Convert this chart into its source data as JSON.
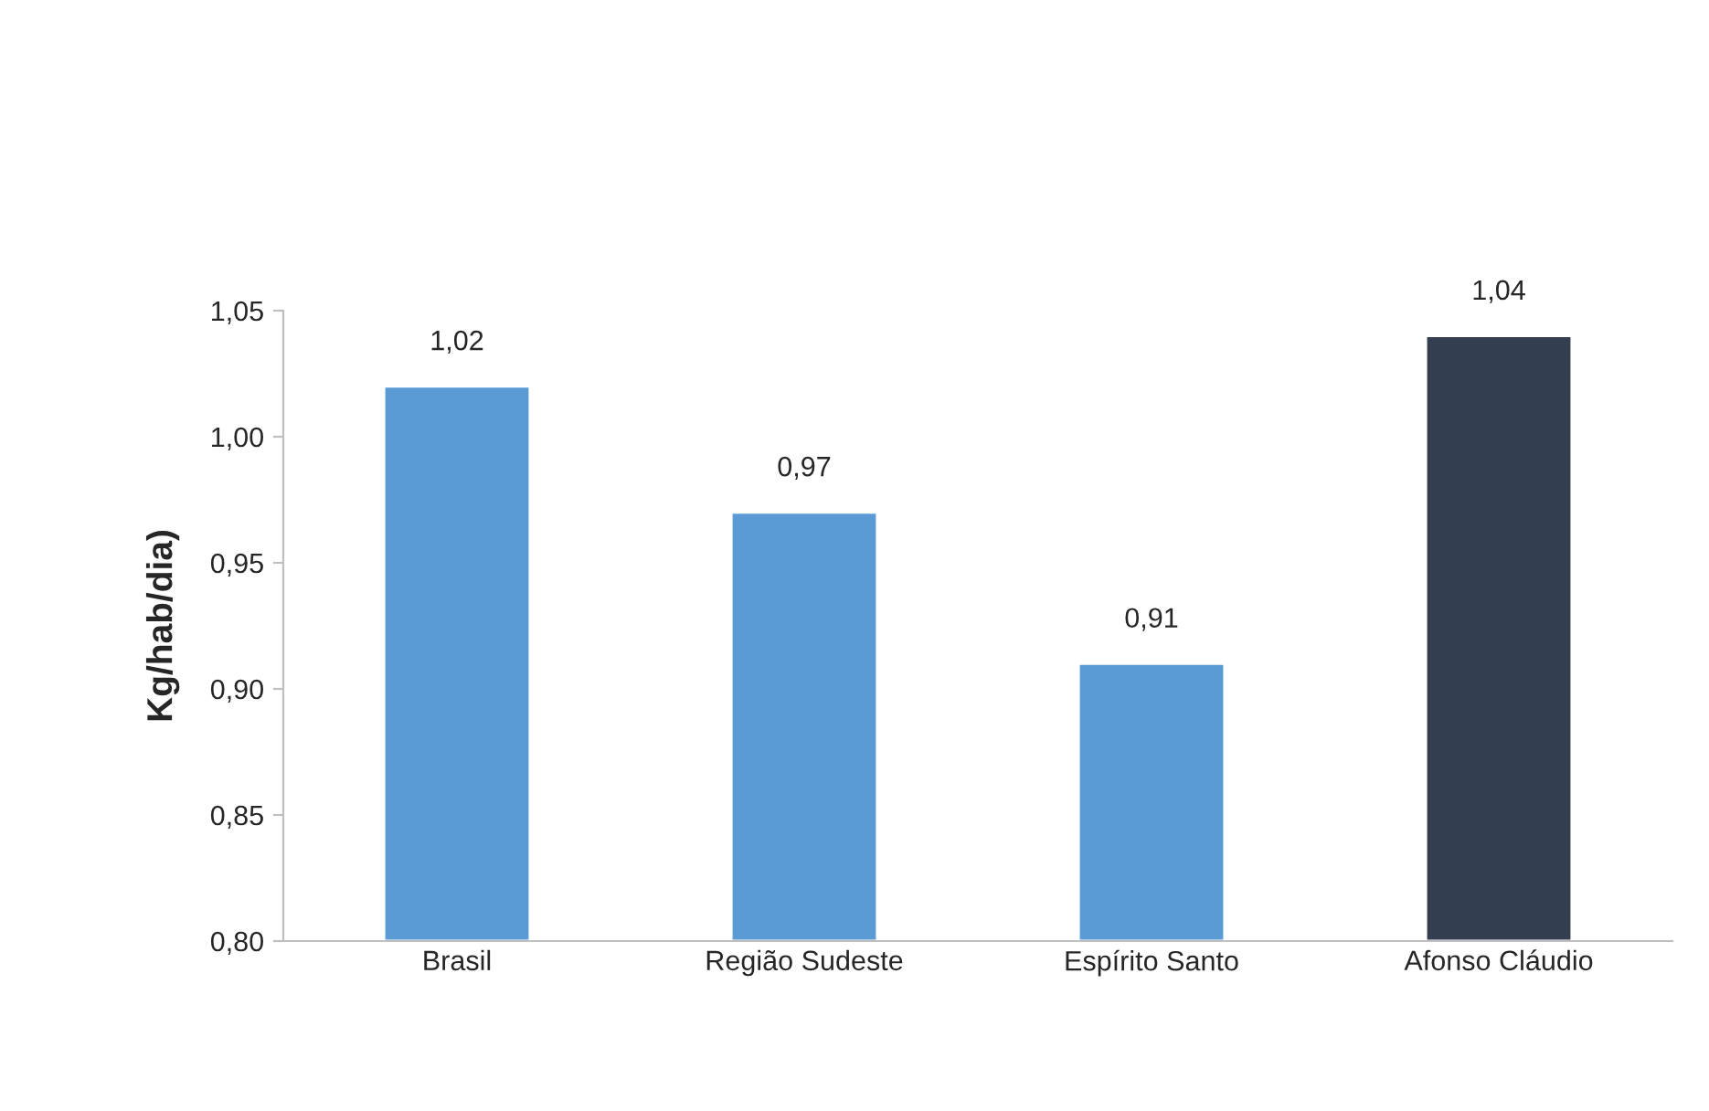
{
  "chart_data": {
    "type": "bar",
    "ylabel": "Kg/hab/dia)",
    "categories": [
      "Brasil",
      "Região Sudeste",
      "Espírito Santo",
      "Afonso Cláudio"
    ],
    "values": [
      1.02,
      0.97,
      0.91,
      1.04
    ],
    "colors": [
      "#5b9bd5",
      "#5b9bd5",
      "#5b9bd5",
      "#333f50"
    ],
    "value_labels": [
      "1,02",
      "0,97",
      "0,91",
      "1,04"
    ],
    "ylim": [
      0.8,
      1.05
    ],
    "yticks": [
      {
        "value": 0.8,
        "label": "0,80"
      },
      {
        "value": 0.85,
        "label": "0,85"
      },
      {
        "value": 0.9,
        "label": "0,90"
      },
      {
        "value": 0.95,
        "label": "0,95"
      },
      {
        "value": 1.0,
        "label": "1,00"
      },
      {
        "value": 1.05,
        "label": "1,05"
      }
    ],
    "grid": false
  }
}
